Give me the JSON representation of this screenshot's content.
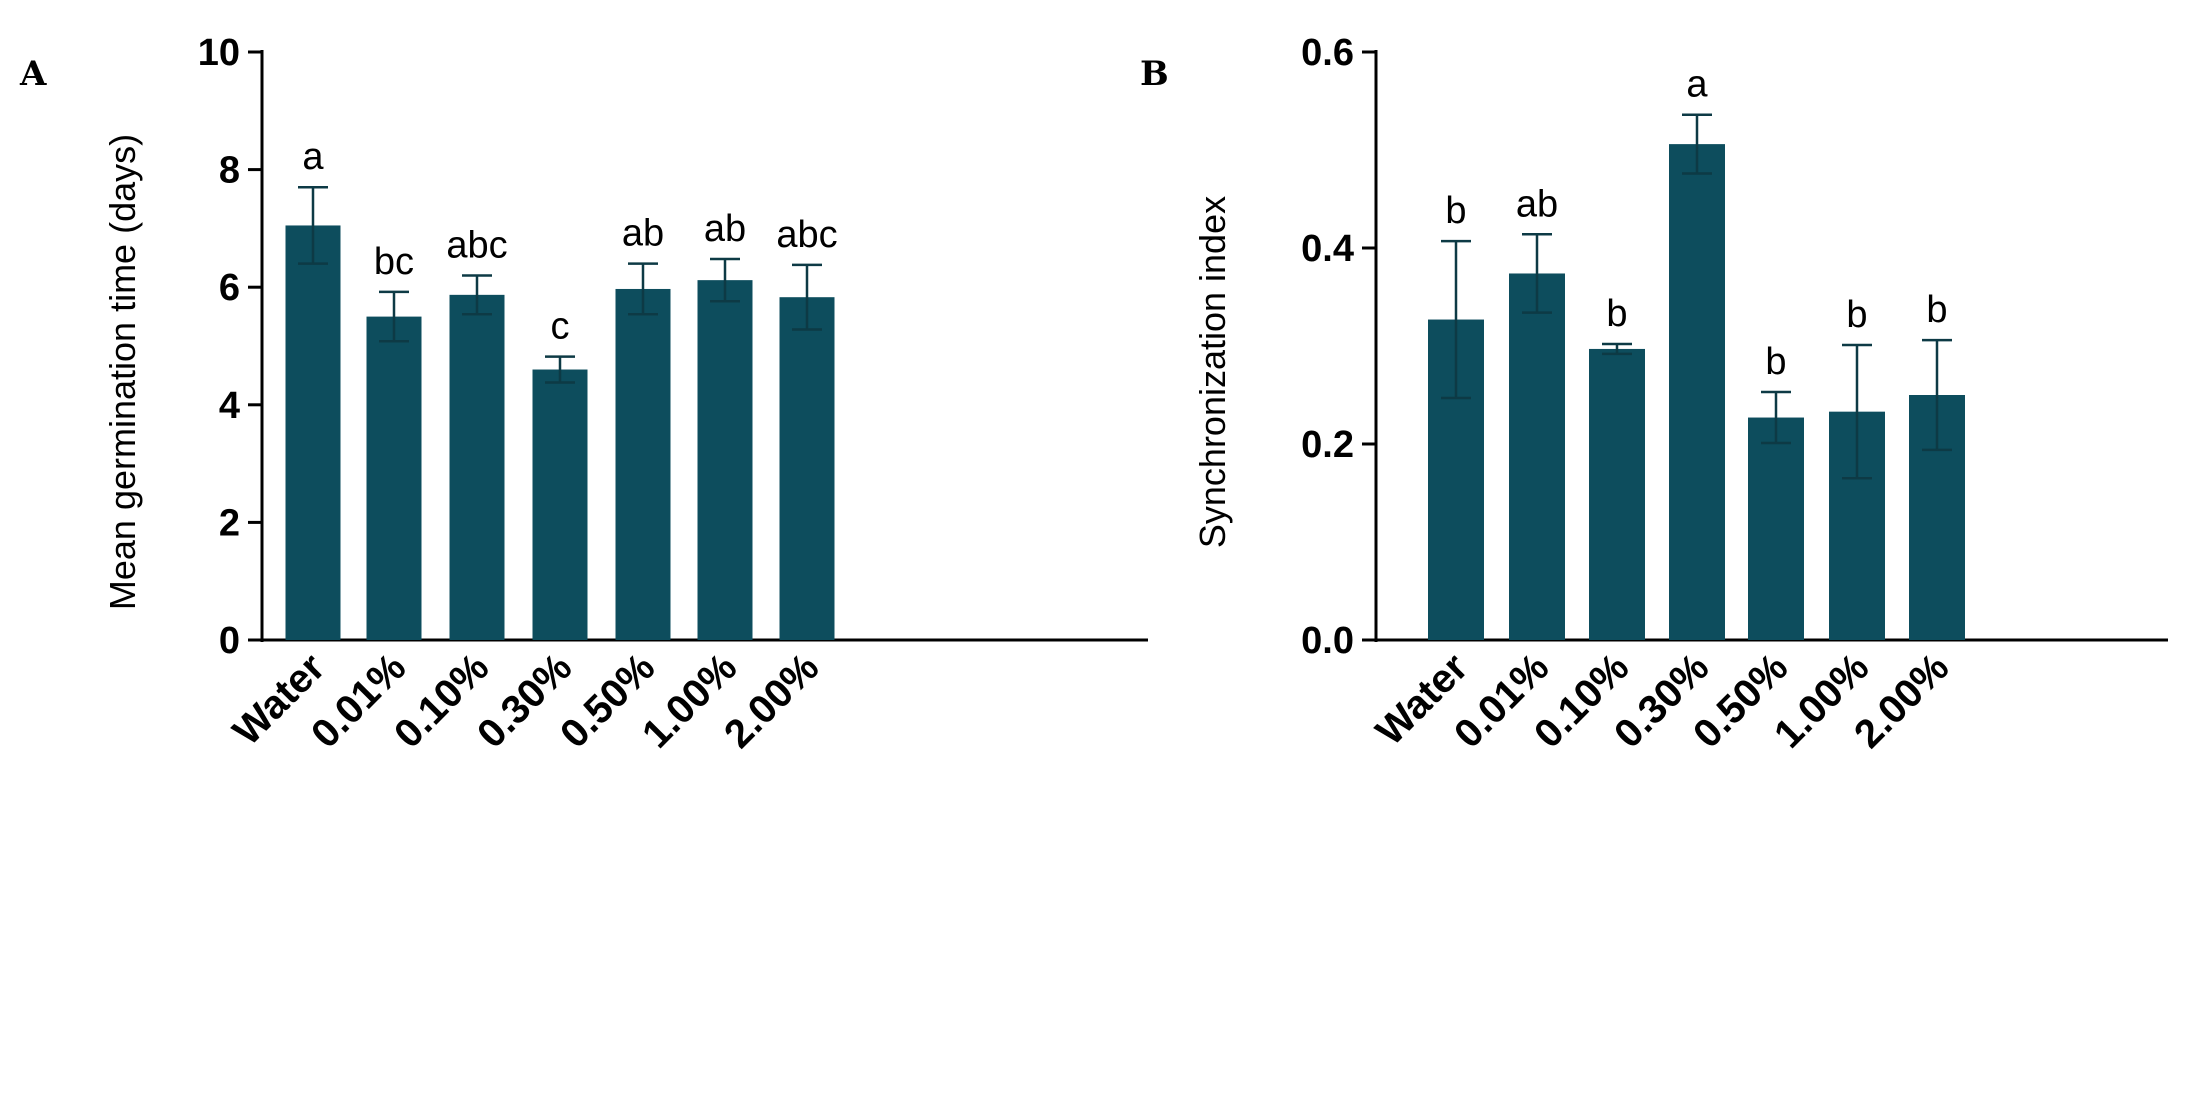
{
  "colors": {
    "bar": "#0d4d5d",
    "errorbar": "#0d3a45",
    "axis": "#000000"
  },
  "chart_data": [
    {
      "panel": "A",
      "type": "bar",
      "title": "",
      "xlabel": "",
      "ylabel": "Mean germination time (days)",
      "ylim": [
        0,
        10
      ],
      "yticks": [
        0,
        2,
        4,
        6,
        8,
        10
      ],
      "categories": [
        "Water",
        "0.01%",
        "0.10%",
        "0.30%",
        "0.50%",
        "1.00%",
        "2.00%"
      ],
      "values": [
        7.05,
        5.5,
        5.87,
        4.6,
        5.97,
        6.12,
        5.83
      ],
      "errors": [
        0.65,
        0.42,
        0.33,
        0.22,
        0.43,
        0.36,
        0.55
      ],
      "significance": [
        "a",
        "bc",
        "abc",
        "c",
        "ab",
        "ab",
        "abc"
      ]
    },
    {
      "panel": "B",
      "type": "bar",
      "title": "",
      "xlabel": "",
      "ylabel": "Synchronization index",
      "ylim": [
        0,
        0.6
      ],
      "yticks": [
        "0.0",
        "0.2",
        "0.4",
        "0.6"
      ],
      "categories": [
        "Water",
        "0.01%",
        "0.10%",
        "0.30%",
        "0.50%",
        "1.00%",
        "2.00%"
      ],
      "values": [
        0.327,
        0.374,
        0.297,
        0.506,
        0.227,
        0.233,
        0.25
      ],
      "errors": [
        0.08,
        0.04,
        0.005,
        0.03,
        0.026,
        0.068,
        0.056
      ],
      "significance": [
        "b",
        "ab",
        "b",
        "a",
        "b",
        "b",
        "b"
      ]
    }
  ]
}
